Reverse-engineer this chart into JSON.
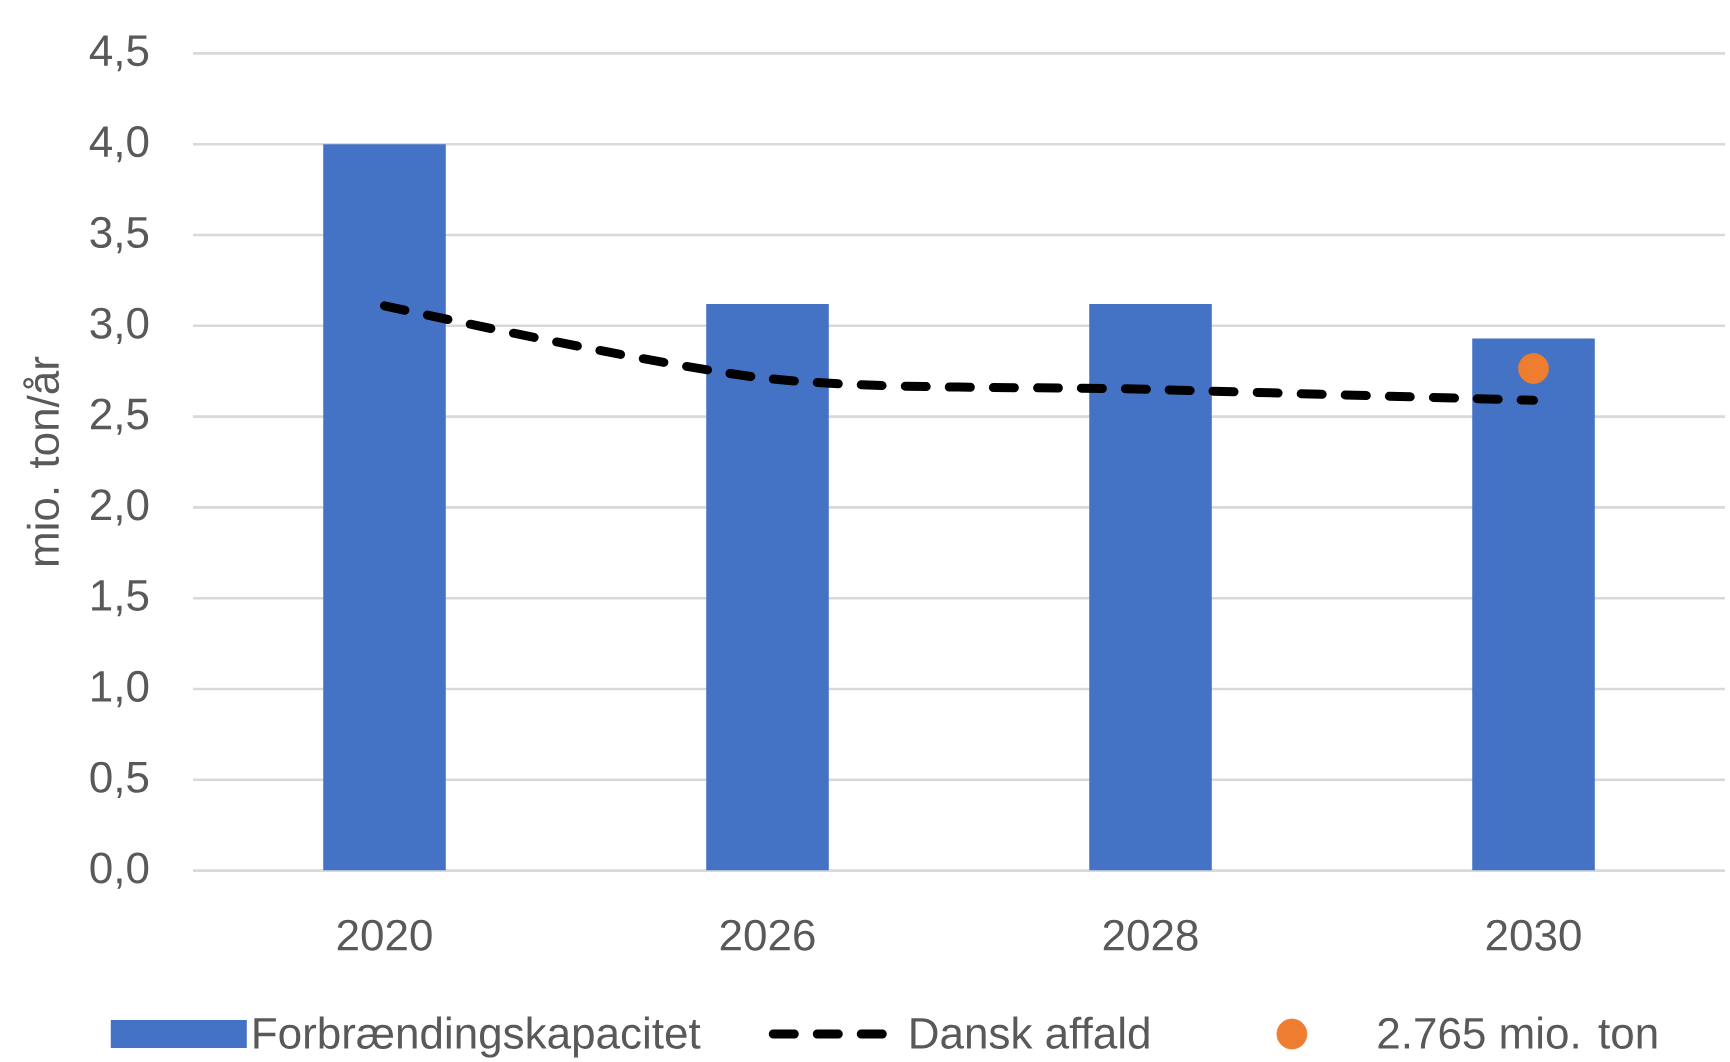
{
  "chart_data": {
    "type": "bar",
    "ylabel": "mio. ton/år",
    "categories": [
      "2020",
      "2026",
      "2028",
      "2030"
    ],
    "series": [
      {
        "name": "Forbrændingskapacitet",
        "color": "#4472c4",
        "values": [
          4.0,
          3.12,
          3.12,
          2.93
        ]
      },
      {
        "name": "Dansk affald",
        "type": "line",
        "color": "#000000",
        "line_style": "dashed",
        "values": [
          3.11,
          2.71,
          2.65,
          2.59
        ]
      },
      {
        "name": "2.765 mio. ton",
        "type": "scatter",
        "color": "#ed7d31",
        "marker": "circle",
        "values": [
          null,
          null,
          null,
          2.765
        ]
      }
    ],
    "ylim": [
      0,
      4.5
    ],
    "yticks": [
      {
        "value": 0,
        "label": "0,0"
      },
      {
        "value": 0.5,
        "label": "0,5"
      },
      {
        "value": 1,
        "label": "1,0"
      },
      {
        "value": 1.5,
        "label": "1,5"
      },
      {
        "value": 2,
        "label": "2,0"
      },
      {
        "value": 2.5,
        "label": "2,5"
      },
      {
        "value": 3,
        "label": "3,0"
      },
      {
        "value": 3.5,
        "label": "3,5"
      },
      {
        "value": 4,
        "label": "4,0"
      },
      {
        "value": 4.5,
        "label": "4,5"
      }
    ],
    "grid": "y",
    "legend": "bottom"
  }
}
